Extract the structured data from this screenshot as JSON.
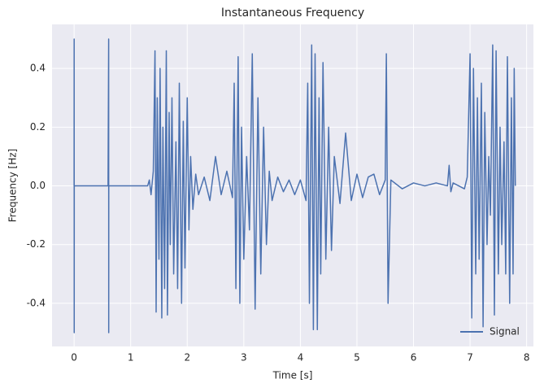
{
  "chart_data": {
    "type": "line",
    "title": "Instantaneous Frequency",
    "x_label": "Time [s]",
    "y_label": "Frequency [Hz]",
    "x": [
      0,
      0.001,
      0.002,
      0.003,
      0.6,
      0.611,
      0.612,
      0.613,
      1.3,
      1.33,
      1.36,
      1.4,
      1.43,
      1.45,
      1.47,
      1.5,
      1.52,
      1.55,
      1.57,
      1.6,
      1.63,
      1.65,
      1.68,
      1.7,
      1.73,
      1.76,
      1.8,
      1.83,
      1.86,
      1.9,
      1.93,
      1.96,
      2.0,
      2.03,
      2.06,
      2.1,
      2.15,
      2.2,
      2.3,
      2.4,
      2.5,
      2.6,
      2.7,
      2.8,
      2.83,
      2.86,
      2.9,
      2.93,
      2.96,
      3.0,
      3.05,
      3.1,
      3.15,
      3.2,
      3.25,
      3.3,
      3.35,
      3.4,
      3.45,
      3.5,
      3.6,
      3.7,
      3.8,
      3.9,
      4.0,
      4.1,
      4.13,
      4.16,
      4.2,
      4.23,
      4.26,
      4.3,
      4.33,
      4.36,
      4.4,
      4.45,
      4.5,
      4.55,
      4.6,
      4.7,
      4.8,
      4.9,
      5.0,
      5.1,
      5.2,
      5.3,
      5.4,
      5.5,
      5.52,
      5.55,
      5.6,
      5.8,
      6.0,
      6.2,
      6.4,
      6.6,
      6.63,
      6.66,
      6.7,
      6.8,
      6.9,
      6.95,
      7.0,
      7.03,
      7.06,
      7.1,
      7.13,
      7.16,
      7.2,
      7.23,
      7.26,
      7.3,
      7.33,
      7.36,
      7.4,
      7.43,
      7.46,
      7.5,
      7.53,
      7.56,
      7.6,
      7.63,
      7.66,
      7.7,
      7.73,
      7.76,
      7.78,
      7.8
    ],
    "series": [
      {
        "name": "Signal",
        "color": "#4c72b0",
        "values": [
          0,
          0.5,
          -0.5,
          0,
          0,
          0.5,
          -0.5,
          0,
          0,
          0.02,
          -0.03,
          0.05,
          0.46,
          -0.43,
          0.3,
          -0.25,
          0.4,
          -0.45,
          0.2,
          -0.35,
          0.46,
          -0.44,
          0.25,
          -0.2,
          0.3,
          -0.3,
          0.15,
          -0.35,
          0.35,
          -0.4,
          0.22,
          -0.28,
          0.3,
          -0.15,
          0.1,
          -0.08,
          0.04,
          -0.03,
          0.03,
          -0.05,
          0.1,
          -0.03,
          0.05,
          -0.04,
          0.35,
          -0.35,
          0.44,
          -0.4,
          0.2,
          -0.25,
          0.1,
          -0.15,
          0.45,
          -0.42,
          0.3,
          -0.3,
          0.2,
          -0.2,
          0.05,
          -0.05,
          0.03,
          -0.02,
          0.02,
          -0.03,
          0.02,
          -0.05,
          0.35,
          -0.4,
          0.48,
          -0.49,
          0.45,
          -0.49,
          0.3,
          -0.3,
          0.42,
          -0.25,
          0.2,
          -0.22,
          0.1,
          -0.06,
          0.18,
          -0.05,
          0.04,
          -0.04,
          0.03,
          0.04,
          -0.03,
          0.02,
          0.45,
          -0.4,
          0.02,
          -0.01,
          0.01,
          0.0,
          0.01,
          0.0,
          0.07,
          -0.02,
          0.01,
          0.0,
          -0.01,
          0.03,
          0.45,
          -0.45,
          0.4,
          -0.3,
          0.3,
          -0.25,
          0.35,
          -0.48,
          0.25,
          -0.2,
          0.1,
          -0.1,
          0.48,
          -0.44,
          0.46,
          -0.3,
          0.2,
          -0.2,
          0.15,
          -0.3,
          0.44,
          -0.4,
          0.3,
          -0.3,
          0.4,
          0.0
        ]
      }
    ],
    "xlim": [
      -0.39,
      8.12
    ],
    "ylim": [
      -0.547,
      0.55
    ],
    "xticks": [
      0,
      1,
      2,
      3,
      4,
      5,
      6,
      7,
      8
    ],
    "yticks": [
      -0.4,
      -0.2,
      {
        "value": 0,
        "label": "0.0"
      },
      0.2,
      0.4
    ],
    "grid": true,
    "legend": "lower right"
  }
}
